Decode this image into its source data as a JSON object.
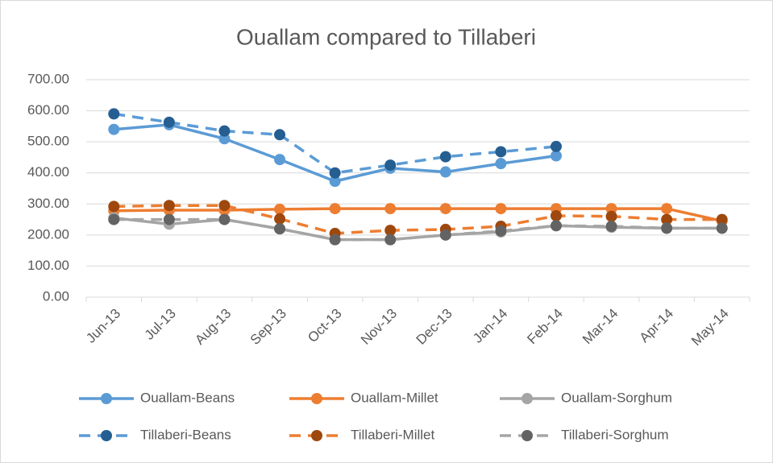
{
  "chart_data": {
    "type": "line",
    "title": "Ouallam compared to Tillaberi",
    "categories": [
      "Jun-13",
      "Jul-13",
      "Aug-13",
      "Sep-13",
      "Oct-13",
      "Nov-13",
      "Dec-13",
      "Jan-14",
      "Feb-14",
      "Mar-14",
      "Apr-14",
      "May-14"
    ],
    "series": [
      {
        "name": "Ouallam-Beans",
        "color": "#5b9bd5",
        "marker_color": "#5b9bd5",
        "dashed": false,
        "values": [
          540,
          555,
          510,
          443,
          373,
          415,
          403,
          430,
          455,
          null,
          null,
          null
        ]
      },
      {
        "name": "Ouallam-Millet",
        "color": "#ed7d31",
        "marker_color": "#ed7d31",
        "dashed": false,
        "values": [
          278,
          280,
          280,
          283,
          285,
          285,
          285,
          285,
          285,
          285,
          285,
          245
        ]
      },
      {
        "name": "Ouallam-Sorghum",
        "color": "#a5a5a5",
        "marker_color": "#a5a5a5",
        "dashed": false,
        "values": [
          255,
          235,
          250,
          220,
          185,
          185,
          200,
          210,
          230,
          225,
          222,
          222
        ]
      },
      {
        "name": "Tillaberi-Beans",
        "color": "#5b9bd5",
        "marker_color": "#255e91",
        "dashed": true,
        "values": [
          590,
          563,
          535,
          523,
          400,
          425,
          452,
          468,
          485,
          null,
          null,
          null
        ]
      },
      {
        "name": "Tillaberi-Millet",
        "color": "#ed7d31",
        "marker_color": "#9e480e",
        "dashed": true,
        "values": [
          292,
          295,
          295,
          252,
          205,
          215,
          218,
          228,
          262,
          260,
          250,
          250
        ]
      },
      {
        "name": "Tillaberi-Sorghum",
        "color": "#a5a5a5",
        "marker_color": "#636363",
        "dashed": true,
        "values": [
          250,
          250,
          250,
          220,
          185,
          185,
          200,
          213,
          230,
          228,
          222,
          222
        ]
      }
    ],
    "ylim": [
      0,
      700
    ],
    "yticks": [
      {
        "value": 0,
        "label": "0.00"
      },
      {
        "value": 100,
        "label": "100.00"
      },
      {
        "value": 200,
        "label": "200.00"
      },
      {
        "value": 300,
        "label": "300.00"
      },
      {
        "value": 400,
        "label": "400.00"
      },
      {
        "value": 500,
        "label": "500.00"
      },
      {
        "value": 600,
        "label": "600.00"
      },
      {
        "value": 700,
        "label": "700.00"
      }
    ],
    "grid": true,
    "legend": "bottom"
  }
}
